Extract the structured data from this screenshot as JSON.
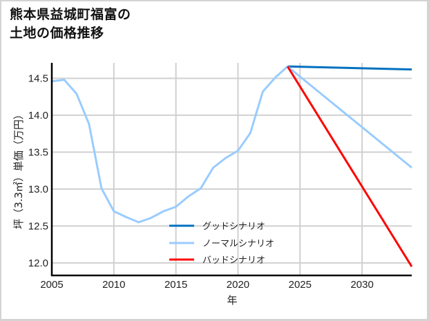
{
  "title": {
    "line1": "熊本県益城町福富の",
    "line2": "土地の価格推移"
  },
  "chart_data": {
    "type": "line",
    "title": "熊本県益城町福富の土地の価格推移",
    "xlabel": "年",
    "ylabel": "坪（3.3㎡）単価（万円）",
    "xlim": [
      2005,
      2034
    ],
    "ylim": [
      11.83,
      14.71
    ],
    "xticks": [
      2005,
      2010,
      2015,
      2020,
      2025,
      2030
    ],
    "yticks": [
      12.0,
      12.5,
      13.0,
      13.5,
      14.0,
      14.5
    ],
    "ytick_labels": [
      "12.0",
      "12.5",
      "13.0",
      "13.5",
      "14.0",
      "14.5"
    ],
    "grid": true,
    "legend_position": "lower center",
    "series": [
      {
        "name": "グッドシナリオ",
        "color": "#0070c0",
        "x": [
          2024,
          2034
        ],
        "values": [
          14.66,
          14.62
        ]
      },
      {
        "name": "ノーマルシナリオ",
        "color": "#99ccff",
        "x": [
          2005,
          2006,
          2007,
          2008,
          2009,
          2010,
          2011,
          2012,
          2013,
          2014,
          2015,
          2016,
          2017,
          2018,
          2019,
          2020,
          2021,
          2022,
          2023,
          2024,
          2034
        ],
        "values": [
          14.46,
          14.48,
          14.29,
          13.88,
          13.01,
          12.7,
          12.62,
          12.55,
          12.61,
          12.7,
          12.76,
          12.9,
          13.01,
          13.29,
          13.42,
          13.52,
          13.76,
          14.32,
          14.51,
          14.66,
          13.29
        ]
      },
      {
        "name": "バッドシナリオ",
        "color": "#ff0000",
        "x": [
          2024,
          2034
        ],
        "values": [
          14.66,
          11.95
        ]
      }
    ]
  }
}
